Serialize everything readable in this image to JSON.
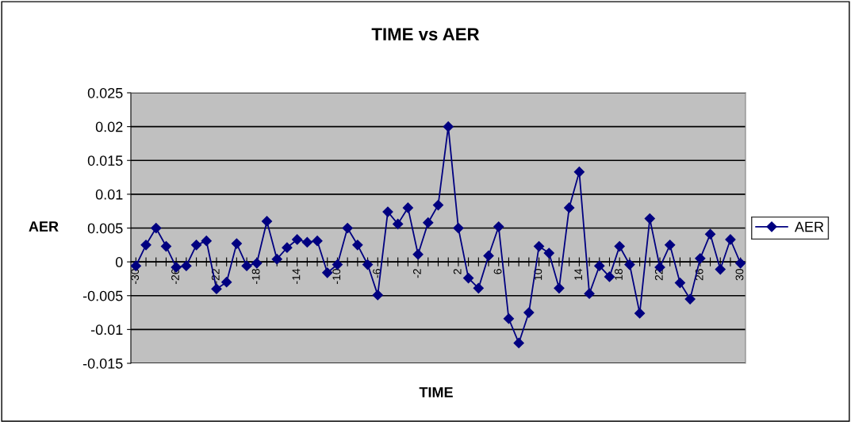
{
  "chart_data": {
    "type": "line",
    "title": "TIME vs AER",
    "xlabel": "TIME",
    "ylabel": "AER",
    "categories": [
      "-30",
      null,
      null,
      null,
      "-26",
      null,
      null,
      null,
      "-22",
      null,
      null,
      null,
      "-18",
      null,
      null,
      null,
      "-14",
      null,
      null,
      null,
      "-10",
      null,
      null,
      null,
      "-6",
      null,
      null,
      null,
      "-2",
      null,
      null,
      null,
      "2",
      null,
      null,
      null,
      "6",
      null,
      null,
      null,
      "10",
      null,
      null,
      null,
      "14",
      null,
      null,
      null,
      "18",
      null,
      null,
      null,
      "22",
      null,
      null,
      null,
      "26",
      null,
      null,
      null,
      "30"
    ],
    "series": [
      {
        "name": "AER",
        "color": "#000080",
        "values": [
          -0.0006,
          0.0025,
          0.005,
          0.0023,
          -0.0008,
          -0.0006,
          0.0025,
          0.0031,
          -0.004,
          -0.003,
          0.0027,
          -0.0006,
          -0.0002,
          0.006,
          0.0004,
          0.0021,
          0.0033,
          0.0029,
          0.0031,
          -0.0016,
          -0.0004,
          0.005,
          0.0025,
          -0.0004,
          -0.0049,
          0.0074,
          0.0056,
          0.008,
          0.0011,
          0.0058,
          0.0084,
          0.02,
          0.005,
          -0.0024,
          -0.0039,
          0.0009,
          0.0052,
          -0.0084,
          -0.012,
          -0.0075,
          0.0023,
          0.0013,
          -0.0039,
          0.008,
          0.0133,
          -0.0047,
          -0.0006,
          -0.0022,
          0.0023,
          -0.0004,
          -0.0076,
          0.0064,
          -0.0008,
          0.0025,
          -0.0031,
          -0.0055,
          0.0005,
          0.0041,
          -0.0011,
          0.0033,
          -0.0002
        ]
      }
    ],
    "ylim": [
      -0.015,
      0.025
    ],
    "yticks": [
      -0.015,
      -0.01,
      -0.005,
      0,
      0.005,
      0.01,
      0.015,
      0.02,
      0.025
    ],
    "grid": "y",
    "legend": "right",
    "marker": "diamond",
    "line_style": "solid"
  }
}
